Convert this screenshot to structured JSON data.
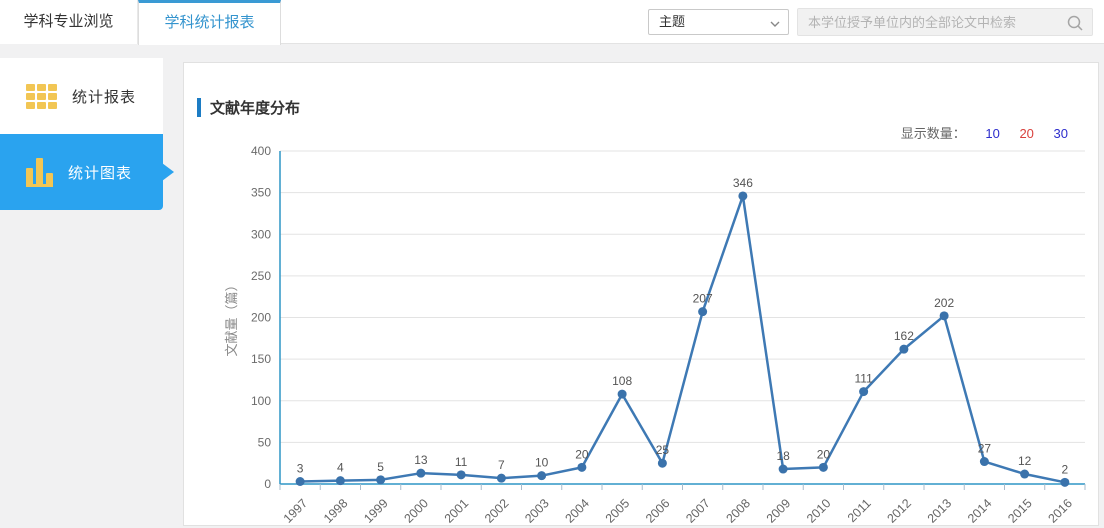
{
  "header": {
    "tabs": [
      {
        "label": "学科专业浏览",
        "active": false
      },
      {
        "label": "学科统计报表",
        "active": true
      }
    ],
    "field_select": {
      "value": "主题"
    },
    "search": {
      "placeholder": "本学位授予单位内的全部论文中检索"
    }
  },
  "sidebar": {
    "items": [
      {
        "label": "统计报表",
        "icon": "grid-icon",
        "active": false
      },
      {
        "label": "统计图表",
        "icon": "bar-chart-icon",
        "active": true
      }
    ]
  },
  "main": {
    "section_title": "文献年度分布",
    "display_count": {
      "label": "显示数量：",
      "options": [
        {
          "label": "10",
          "color": "#2d2dcc",
          "selected": false
        },
        {
          "label": "20",
          "color": "#d9413d",
          "selected": true
        },
        {
          "label": "30",
          "color": "#2d2dcc",
          "selected": false
        }
      ]
    }
  },
  "chart_data": {
    "type": "line",
    "title": "文献年度分布",
    "categories": [
      "1997",
      "1998",
      "1999",
      "2000",
      "2001",
      "2002",
      "2003",
      "2004",
      "2005",
      "2006",
      "2007",
      "2008",
      "2009",
      "2010",
      "2011",
      "2012",
      "2013",
      "2014",
      "2015",
      "2016"
    ],
    "values": [
      3,
      4,
      5,
      13,
      11,
      7,
      10,
      20,
      108,
      25,
      207,
      346,
      18,
      20,
      111,
      162,
      202,
      27,
      12,
      2
    ],
    "xlabel": "",
    "ylabel": "文献量（篇）",
    "ylim": [
      0,
      400
    ],
    "ytick_step": 50,
    "grid": true,
    "legend_position": "none",
    "colors": {
      "line": "#3e79b4",
      "marker": "#3a72ab",
      "axis": "#2e96c6",
      "gridline": "#e3e3e3",
      "tick": "#a9bccc",
      "value_label": "#555555",
      "axis_label": "#6b6b6b",
      "ylabel_text": "#8a8a8a"
    }
  }
}
